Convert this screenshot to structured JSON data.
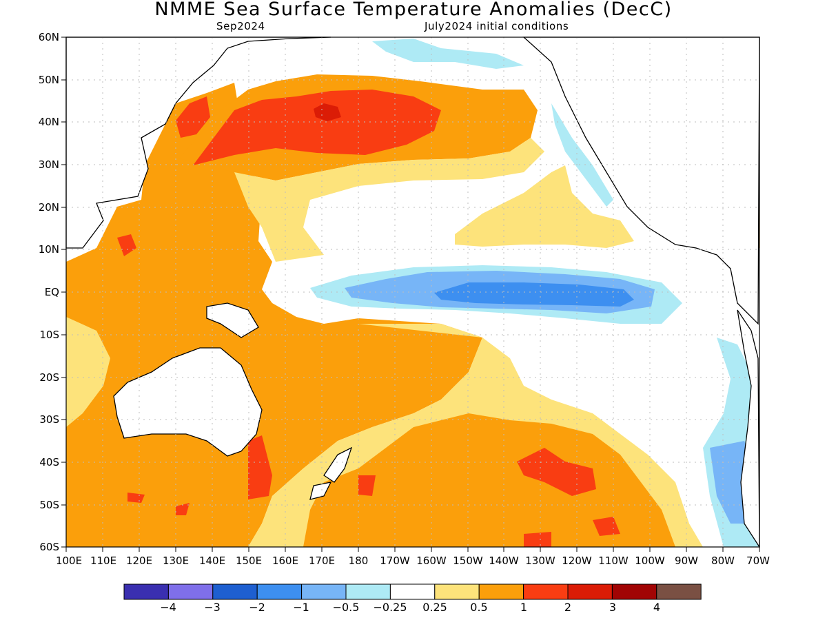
{
  "title": "NMME Sea Surface Temperature Anomalies (DecC)",
  "subtitle_left": "Sep2024",
  "subtitle_right": "July2024 initial conditions",
  "lat_labels": [
    "60N",
    "50N",
    "40N",
    "30N",
    "20N",
    "10N",
    "EQ",
    "10S",
    "20S",
    "30S",
    "40S",
    "50S",
    "60S"
  ],
  "lon_labels": [
    "100E",
    "110E",
    "120E",
    "130E",
    "140E",
    "150E",
    "160E",
    "170E",
    "180",
    "170W",
    "160W",
    "150W",
    "140W",
    "130W",
    "120W",
    "110W",
    "100W",
    "90W",
    "80W",
    "70W"
  ],
  "colorbar": {
    "colors": [
      "#3a2fb0",
      "#7f6fea",
      "#1e5fd0",
      "#3d8ff0",
      "#77b5f7",
      "#aeeaf5",
      "#ffffff",
      "#fde37b",
      "#fb9f0b",
      "#f93d12",
      "#db1c06",
      "#a10404",
      "#7a5043"
    ],
    "labels": [
      "−4",
      "−3",
      "−2",
      "−1",
      "−0.5",
      "−0.25",
      "0.25",
      "0.5",
      "1",
      "2",
      "3",
      "4"
    ]
  },
  "palette": {
    "cold_025": "#aeeaf5",
    "cold_05": "#77b5f7",
    "cold_1": "#3d8ff0",
    "warm_025": "#fde37b",
    "warm_05": "#fb9f0b",
    "warm_1": "#f93d12",
    "warm_2": "#db1c06",
    "warm_3": "#a10404"
  }
}
